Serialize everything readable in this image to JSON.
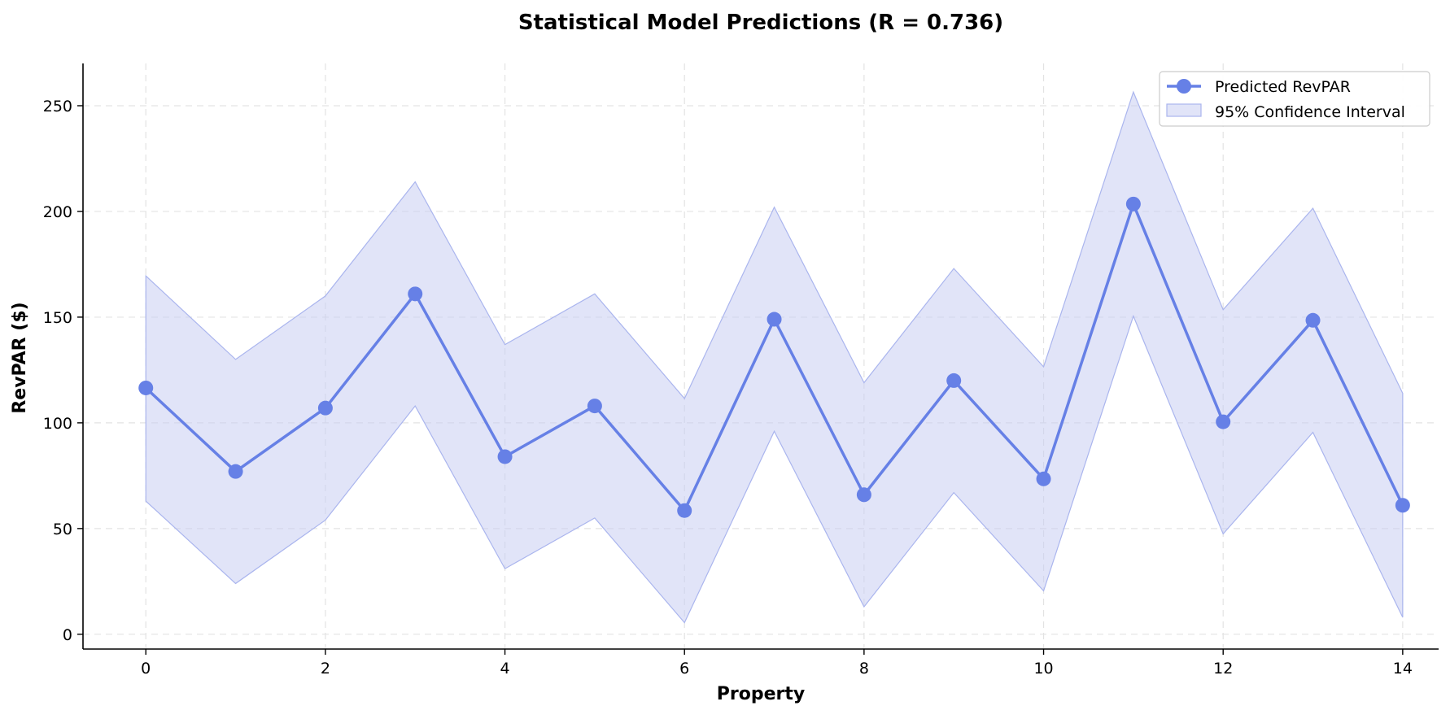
{
  "colors": {
    "line": "#6680e6",
    "band_fill": "#c8cdf3",
    "band_edge": "#aab5ee",
    "grid": "#e3e3e3"
  },
  "chart_data": {
    "type": "line",
    "title": "Statistical Model Predictions (R = 0.736)",
    "xlabel": "Property",
    "ylabel": "RevPAR ($)",
    "xlim": [
      -0.7,
      14.4
    ],
    "ylim": [
      -7,
      270
    ],
    "xticks": [
      0,
      2,
      4,
      6,
      8,
      10,
      12,
      14
    ],
    "yticks": [
      0,
      50,
      100,
      150,
      200,
      250
    ],
    "grid": true,
    "legend_position": "top-right",
    "x": [
      0,
      1,
      2,
      3,
      4,
      5,
      6,
      7,
      8,
      9,
      10,
      11,
      12,
      13,
      14
    ],
    "series": [
      {
        "name": "Predicted RevPAR",
        "kind": "line-markers",
        "values": [
          116.5,
          77,
          107,
          161,
          84,
          108,
          58.5,
          149,
          66,
          120,
          73.5,
          203.5,
          100.5,
          148.5,
          61
        ]
      },
      {
        "name": "95% Confidence Interval",
        "kind": "band",
        "lower": [
          63,
          24,
          54,
          108,
          31,
          55,
          5.5,
          96,
          13,
          67,
          20.5,
          150.5,
          47.5,
          95.5,
          8
        ],
        "upper": [
          169.5,
          130,
          160,
          214,
          137,
          161,
          111.5,
          202,
          119,
          173,
          126.5,
          256.5,
          153.5,
          201.5,
          114
        ]
      }
    ]
  }
}
